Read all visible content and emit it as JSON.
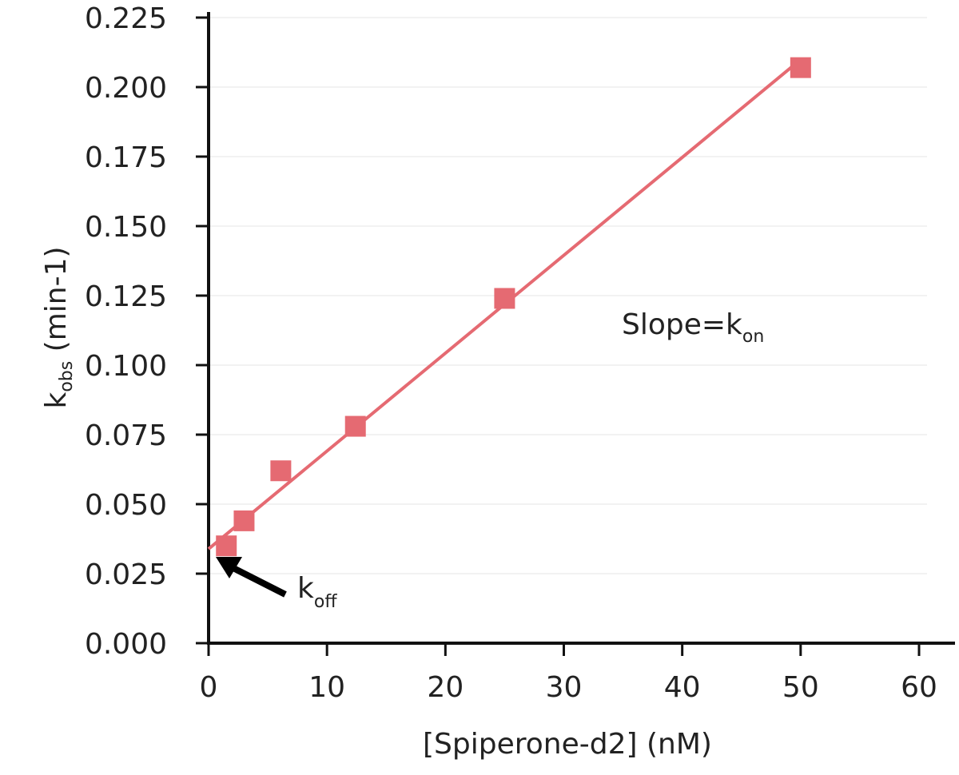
{
  "chart_data": {
    "type": "scatter",
    "x": [
      1.5,
      3,
      6.1,
      12.4,
      25,
      50
    ],
    "y": [
      0.035,
      0.044,
      0.062,
      0.078,
      0.124,
      0.207
    ],
    "fit_line": {
      "slope": 0.00352,
      "intercept": 0.0339
    },
    "xlim": [
      0,
      60
    ],
    "ylim": [
      0,
      0.225
    ],
    "x_ticks": [
      "0",
      "10",
      "20",
      "30",
      "40",
      "50",
      "60"
    ],
    "y_ticks": [
      "0.000",
      "0.025",
      "0.050",
      "0.075",
      "0.100",
      "0.125",
      "0.150",
      "0.175",
      "0.200",
      "0.225"
    ],
    "xlabel": "[Spiperone-d2] (nM)",
    "ylabel": {
      "main": "k",
      "subscript": "obs",
      "suffix": " (min-1)"
    },
    "annotations": {
      "slope": {
        "main": "Slope=k",
        "subscript": "on"
      },
      "koff": {
        "main": "k",
        "subscript": "off"
      }
    },
    "grid": true,
    "colors": {
      "marker": "#e56a72",
      "line": "#e56a72",
      "axis": "#111111",
      "grid": "#e4e4e4",
      "arrow": "#000000"
    }
  }
}
